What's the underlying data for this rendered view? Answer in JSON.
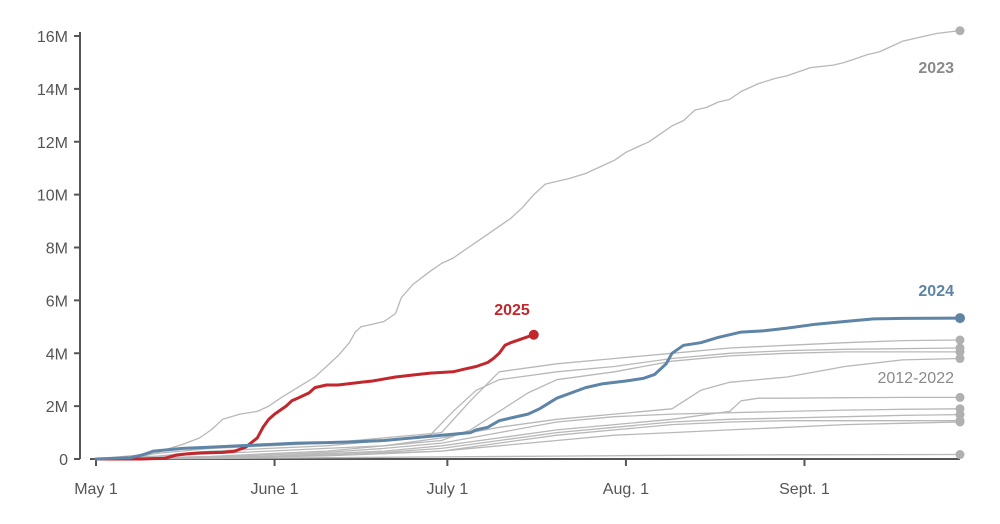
{
  "chart_data": {
    "type": "line",
    "ylabel": "",
    "xlabel": "",
    "x_domain": [
      "May 1",
      "Sept. 30"
    ],
    "ylim": [
      0,
      16000000
    ],
    "y_ticks": [
      {
        "value": 0,
        "label": "0"
      },
      {
        "value": 2000000,
        "label": "2M"
      },
      {
        "value": 4000000,
        "label": "4M"
      },
      {
        "value": 6000000,
        "label": "6M"
      },
      {
        "value": 8000000,
        "label": "8M"
      },
      {
        "value": 10000000,
        "label": "10M"
      },
      {
        "value": 12000000,
        "label": "12M"
      },
      {
        "value": 14000000,
        "label": "14M"
      },
      {
        "value": 16000000,
        "label": "16M"
      }
    ],
    "x_ticks": [
      {
        "day": 0,
        "label": "May 1"
      },
      {
        "day": 31,
        "label": "June 1"
      },
      {
        "day": 61,
        "label": "July 1"
      },
      {
        "day": 92,
        "label": "Aug. 1"
      },
      {
        "day": 123,
        "label": "Sept. 1"
      }
    ],
    "x_unit": "days since May 1",
    "grid": false,
    "colors": {
      "highlight_2025": "#c1272d",
      "highlight_2024": "#5e84a6",
      "background_years": "#b8b8b8",
      "label_2023": "#8a8a8a",
      "axis": "#555555"
    },
    "series": [
      {
        "name": "2025",
        "color": "#c1272d",
        "label": "2025",
        "x": [
          0,
          8,
          12,
          14,
          16,
          18,
          22,
          24,
          26,
          28,
          29,
          30,
          31,
          33,
          34,
          35,
          37,
          38,
          40,
          42,
          46,
          48,
          52,
          56,
          58,
          62,
          64,
          66,
          68,
          69,
          70,
          71,
          72,
          76
        ],
        "values": [
          0,
          0,
          30000,
          150000,
          200000,
          230000,
          250000,
          290000,
          450000,
          800000,
          1200000,
          1500000,
          1700000,
          2000000,
          2200000,
          2300000,
          2500000,
          2700000,
          2800000,
          2800000,
          2900000,
          2950000,
          3100000,
          3200000,
          3250000,
          3300000,
          3400000,
          3500000,
          3650000,
          3800000,
          4000000,
          4300000,
          4400000,
          4700000
        ]
      },
      {
        "name": "2024",
        "color": "#5e84a6",
        "label": "2024",
        "x": [
          0,
          6,
          8,
          10,
          15,
          20,
          25,
          30,
          35,
          40,
          45,
          50,
          55,
          60,
          65,
          66,
          68,
          70,
          72,
          75,
          77,
          80,
          85,
          88,
          92,
          95,
          97,
          99,
          100,
          102,
          105,
          108,
          112,
          116,
          120,
          125,
          130,
          135,
          140,
          150
        ],
        "values": [
          0,
          50000,
          150000,
          300000,
          400000,
          450000,
          500000,
          550000,
          600000,
          620000,
          650000,
          700000,
          800000,
          900000,
          1000000,
          1100000,
          1200000,
          1450000,
          1550000,
          1700000,
          1900000,
          2300000,
          2700000,
          2850000,
          2950000,
          3050000,
          3200000,
          3600000,
          4000000,
          4300000,
          4400000,
          4600000,
          4800000,
          4850000,
          4950000,
          5100000,
          5200000,
          5300000,
          5320000,
          5330000
        ]
      },
      {
        "name": "2023",
        "color": "#b8b8b8",
        "label": "2023",
        "x": [
          0,
          5,
          8,
          10,
          12,
          15,
          18,
          20,
          22,
          25,
          28,
          30,
          32,
          35,
          38,
          40,
          42,
          44,
          45,
          46,
          48,
          50,
          52,
          53,
          55,
          58,
          60,
          62,
          64,
          66,
          68,
          70,
          72,
          74,
          76,
          78,
          80,
          82,
          85,
          88,
          90,
          92,
          94,
          96,
          98,
          100,
          102,
          104,
          106,
          108,
          110,
          112,
          115,
          118,
          120,
          124,
          126,
          128,
          130,
          134,
          136,
          138,
          140,
          142,
          144,
          146,
          148,
          150
        ],
        "values": [
          0,
          30000,
          100000,
          200000,
          350000,
          550000,
          800000,
          1100000,
          1500000,
          1700000,
          1800000,
          2000000,
          2300000,
          2700000,
          3100000,
          3500000,
          3900000,
          4400000,
          4800000,
          5000000,
          5100000,
          5200000,
          5500000,
          6100000,
          6600000,
          7100000,
          7400000,
          7600000,
          7900000,
          8200000,
          8500000,
          8800000,
          9100000,
          9500000,
          10000000,
          10400000,
          10500000,
          10600000,
          10800000,
          11100000,
          11300000,
          11600000,
          11800000,
          12000000,
          12300000,
          12600000,
          12800000,
          13200000,
          13300000,
          13500000,
          13600000,
          13900000,
          14200000,
          14400000,
          14500000,
          14800000,
          14850000,
          14900000,
          15000000,
          15300000,
          15400000,
          15600000,
          15800000,
          15900000,
          16000000,
          16100000,
          16150000,
          16200000
        ]
      },
      {
        "name": "2012-2022 A",
        "color": "#b8b8b8",
        "x": [
          0,
          10,
          20,
          30,
          40,
          50,
          60,
          65,
          70,
          80,
          90,
          100,
          110,
          120,
          130,
          140,
          150
        ],
        "values": [
          0,
          200000,
          400000,
          500000,
          600000,
          800000,
          1000000,
          2200000,
          3300000,
          3600000,
          3800000,
          4000000,
          4200000,
          4300000,
          4400000,
          4480000,
          4500000
        ]
      },
      {
        "name": "2012-2022 B",
        "color": "#b8b8b8",
        "x": [
          0,
          10,
          20,
          30,
          40,
          50,
          58,
          62,
          66,
          70,
          80,
          90,
          100,
          110,
          120,
          130,
          150
        ],
        "values": [
          0,
          100000,
          300000,
          400000,
          500000,
          700000,
          900000,
          1800000,
          2600000,
          3000000,
          3300000,
          3500000,
          3800000,
          4000000,
          4100000,
          4150000,
          4200000
        ]
      },
      {
        "name": "2012-2022 C",
        "color": "#b8b8b8",
        "x": [
          0,
          10,
          20,
          30,
          40,
          50,
          60,
          65,
          70,
          75,
          80,
          90,
          100,
          110,
          120,
          130,
          150
        ],
        "values": [
          0,
          100000,
          200000,
          300000,
          400000,
          500000,
          700000,
          1100000,
          1800000,
          2500000,
          3000000,
          3300000,
          3700000,
          3900000,
          4000000,
          4050000,
          4050000
        ]
      },
      {
        "name": "2012-2022 D",
        "color": "#b8b8b8",
        "x": [
          0,
          10,
          20,
          30,
          40,
          50,
          60,
          70,
          80,
          90,
          100,
          105,
          110,
          120,
          130,
          140,
          150
        ],
        "values": [
          0,
          50000,
          100000,
          200000,
          300000,
          500000,
          800000,
          1200000,
          1500000,
          1700000,
          1900000,
          2600000,
          2900000,
          3100000,
          3500000,
          3750000,
          3800000
        ]
      },
      {
        "name": "2012-2022 E",
        "color": "#b8b8b8",
        "x": [
          0,
          10,
          20,
          30,
          40,
          50,
          60,
          70,
          80,
          90,
          100,
          110,
          112,
          115,
          120,
          130,
          140,
          150
        ],
        "values": [
          0,
          20000,
          50000,
          100000,
          200000,
          300000,
          500000,
          800000,
          1100000,
          1300000,
          1500000,
          1800000,
          2200000,
          2300000,
          2300000,
          2320000,
          2330000,
          2330000
        ]
      },
      {
        "name": "2012-2022 F",
        "color": "#b8b8b8",
        "x": [
          0,
          10,
          20,
          30,
          40,
          50,
          60,
          70,
          80,
          90,
          100,
          110,
          120,
          130,
          140,
          150
        ],
        "values": [
          0,
          30000,
          80000,
          150000,
          250000,
          400000,
          600000,
          1000000,
          1400000,
          1600000,
          1700000,
          1750000,
          1800000,
          1850000,
          1880000,
          1900000
        ]
      },
      {
        "name": "2012-2022 G",
        "color": "#b8b8b8",
        "x": [
          0,
          10,
          20,
          30,
          40,
          50,
          60,
          70,
          80,
          90,
          100,
          110,
          120,
          130,
          140,
          150
        ],
        "values": [
          0,
          30000,
          60000,
          100000,
          150000,
          250000,
          400000,
          700000,
          1000000,
          1200000,
          1400000,
          1500000,
          1550000,
          1600000,
          1650000,
          1680000
        ]
      },
      {
        "name": "2012-2022 H",
        "color": "#b8b8b8",
        "x": [
          0,
          10,
          20,
          30,
          40,
          50,
          60,
          70,
          80,
          90,
          100,
          110,
          120,
          130,
          140,
          150
        ],
        "values": [
          0,
          20000,
          40000,
          80000,
          120000,
          200000,
          300000,
          600000,
          900000,
          1100000,
          1300000,
          1400000,
          1450000,
          1450000,
          1450000,
          1450000
        ]
      },
      {
        "name": "2012-2022 I",
        "color": "#b8b8b8",
        "x": [
          0,
          10,
          20,
          30,
          40,
          50,
          60,
          70,
          80,
          90,
          100,
          110,
          120,
          130,
          140,
          150
        ],
        "values": [
          0,
          20000,
          50000,
          100000,
          150000,
          220000,
          300000,
          500000,
          700000,
          900000,
          1000000,
          1100000,
          1200000,
          1300000,
          1350000,
          1400000
        ]
      },
      {
        "name": "2012-2022 J",
        "color": "#b8b8b8",
        "x": [
          0,
          20,
          40,
          60,
          80,
          100,
          120,
          150
        ],
        "values": [
          0,
          20000,
          50000,
          80000,
          110000,
          140000,
          160000,
          170000
        ]
      }
    ],
    "annotations": {
      "label_2025": "2025",
      "label_2024": "2024",
      "label_2023": "2023",
      "label_range": "2012-2022"
    }
  }
}
